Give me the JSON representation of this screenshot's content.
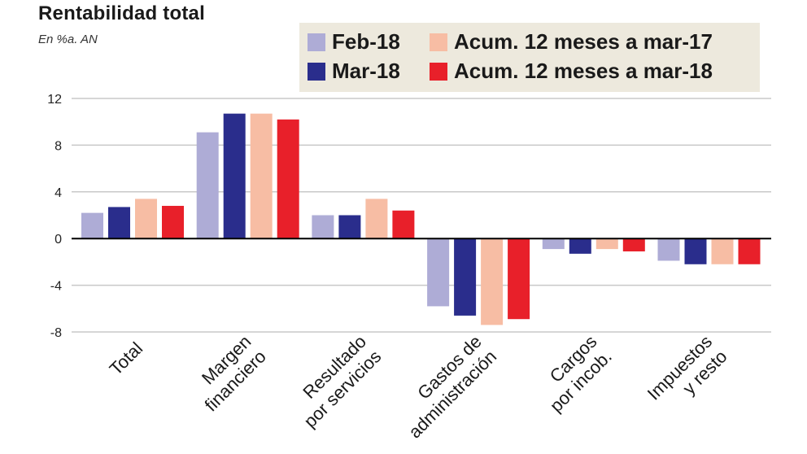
{
  "title": "Rentabilidad total",
  "subtitle": "En %a. AN",
  "colors": {
    "feb18": "#aeacd6",
    "mar18": "#2a2d8c",
    "acum17": "#f7bda4",
    "acum18": "#e8202a",
    "gridline": "#c8c8c8",
    "zeroline": "#000000",
    "legend_bg": "#ede9dd"
  },
  "legend": [
    {
      "label": "Feb-18",
      "color": "#aeacd6"
    },
    {
      "label": "Acum. 12 meses a mar-17",
      "color": "#f7bda4"
    },
    {
      "label": "Mar-18",
      "color": "#2a2d8c"
    },
    {
      "label": "Acum. 12 meses a mar-18",
      "color": "#e8202a"
    }
  ],
  "chart_data": {
    "type": "bar",
    "title": "Rentabilidad total",
    "subtitle": "En %a. AN",
    "categories": [
      [
        "Total"
      ],
      [
        "Margen",
        "financiero"
      ],
      [
        "Resultado",
        "por servicios"
      ],
      [
        "Gastos de",
        "administración"
      ],
      [
        "Cargos",
        "por incob."
      ],
      [
        "Impuestos",
        "y resto"
      ]
    ],
    "series": [
      {
        "name": "Feb-18",
        "color": "#aeacd6",
        "values": [
          2.2,
          9.1,
          2.0,
          -5.8,
          -0.9,
          -1.9
        ]
      },
      {
        "name": "Mar-18",
        "color": "#2a2d8c",
        "values": [
          2.7,
          10.7,
          2.0,
          -6.6,
          -1.3,
          -2.2
        ]
      },
      {
        "name": "Acum. 12 meses a mar-17",
        "color": "#f7bda4",
        "values": [
          3.4,
          10.7,
          3.4,
          -7.4,
          -0.9,
          -2.2
        ]
      },
      {
        "name": "Acum. 12 meses a mar-18",
        "color": "#e8202a",
        "values": [
          2.8,
          10.2,
          2.4,
          -6.9,
          -1.1,
          -2.2
        ]
      }
    ],
    "yticks": [
      12,
      8,
      4,
      0,
      -4,
      -8
    ],
    "ylim": [
      -8,
      12
    ],
    "grid": true,
    "legend_position": "top-right"
  }
}
